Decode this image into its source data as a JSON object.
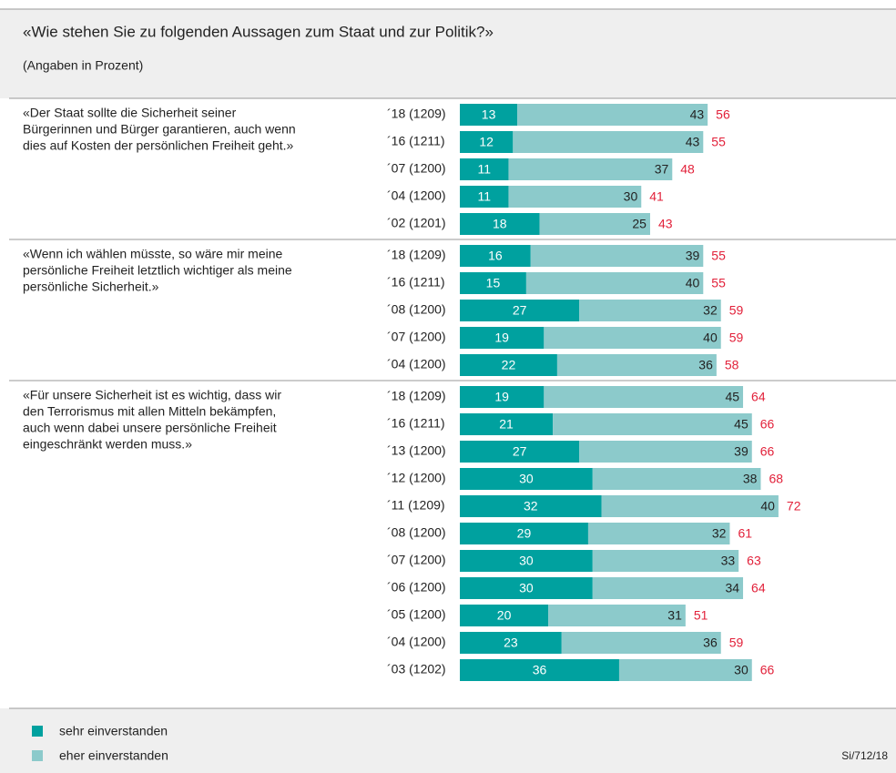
{
  "chart_data": {
    "type": "bar",
    "orientation": "horizontal",
    "stacked": true,
    "title": "«Wie stehen Sie zu folgenden Aussagen zum Staat und zur Politik?»",
    "subtitle": "(Angaben in Prozent)",
    "categories": [
      "´18 (1209)",
      "´16 (1211)",
      "´07 (1200)",
      "´04 (1200)",
      "´02 (1201)",
      "´18 (1209)",
      "´16 (1211)",
      "´08 (1200)",
      "´07 (1200)",
      "´04 (1200)",
      "´18 (1209)",
      "´16 (1211)",
      "´13 (1200)",
      "´12 (1200)",
      "´11 (1209)",
      "´08 (1200)",
      "´07 (1200)",
      "´06 (1200)",
      "´05 (1200)",
      "´04 (1200)",
      "´03 (1202)"
    ],
    "group_labels": [
      [
        "«Der Staat sollte die Sicherheit seiner",
        "Bürgerinnen und Bürger garantieren, auch wenn",
        "dies auf Kosten der persönlichen Freiheit geht.»"
      ],
      null,
      null,
      null,
      null,
      [
        "«Wenn ich wählen müsste, so wäre mir meine",
        "persönliche Freiheit letztlich wichtiger als meine",
        "persönliche Sicherheit.»"
      ],
      null,
      null,
      null,
      null,
      [
        "«Für unsere Sicherheit ist es wichtig, dass wir",
        "den Terrorismus mit allen Mitteln bekämpfen,",
        "auch wenn dabei unsere persönliche Freiheit",
        "eingeschränkt werden muss.»"
      ],
      null,
      null,
      null,
      null,
      null,
      null,
      null,
      null,
      null,
      null
    ],
    "series": [
      {
        "name": "sehr einverstanden",
        "color": "#00a19f",
        "values": [
          13,
          12,
          11,
          11,
          18,
          16,
          15,
          27,
          19,
          22,
          19,
          21,
          27,
          30,
          32,
          29,
          30,
          30,
          20,
          23,
          36
        ]
      },
      {
        "name": "eher einverstanden",
        "color": "#8ccacb",
        "values": [
          43,
          43,
          37,
          30,
          25,
          39,
          40,
          32,
          40,
          36,
          45,
          45,
          39,
          38,
          40,
          32,
          33,
          34,
          31,
          36,
          30
        ]
      }
    ],
    "totals": [
      56,
      55,
      48,
      41,
      43,
      55,
      55,
      59,
      59,
      58,
      64,
      66,
      66,
      68,
      72,
      61,
      63,
      64,
      51,
      59,
      66
    ],
    "totals_color": "#e2213a",
    "source": "Si/712/18"
  }
}
